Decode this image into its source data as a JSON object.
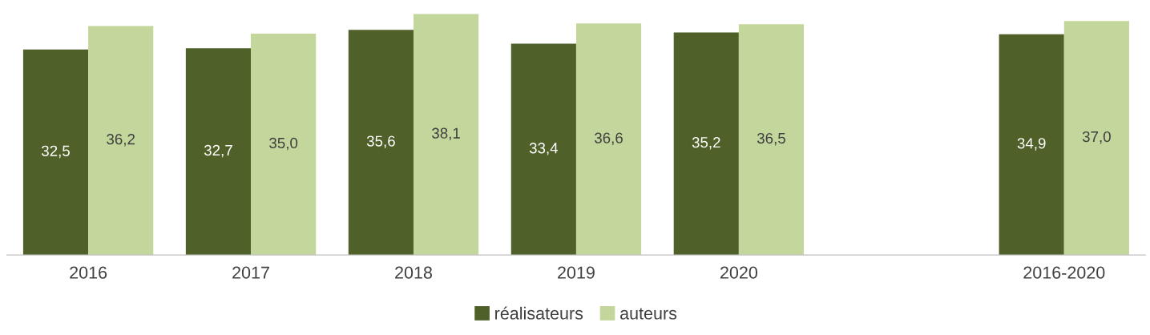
{
  "chart_data": {
    "type": "bar",
    "categories": [
      "2016",
      "2017",
      "2018",
      "2019",
      "2020",
      null,
      "2016-2020"
    ],
    "series": [
      {
        "name": "réalisateurs",
        "color": "#4f6128",
        "values": [
          32.5,
          32.7,
          35.6,
          33.4,
          35.2,
          null,
          34.9
        ],
        "value_labels": [
          "32,5",
          "32,7",
          "35,6",
          "33,4",
          "35,2",
          null,
          "34,9"
        ]
      },
      {
        "name": "auteurs",
        "color": "#c3d69b",
        "values": [
          36.2,
          35.0,
          38.1,
          36.6,
          36.5,
          null,
          37.0
        ],
        "value_labels": [
          "36,2",
          "35,0",
          "38,1",
          "36,6",
          "36,5",
          null,
          "37,0"
        ]
      }
    ],
    "tick_labels": "x",
    "grid": false,
    "legend": "bottom"
  }
}
